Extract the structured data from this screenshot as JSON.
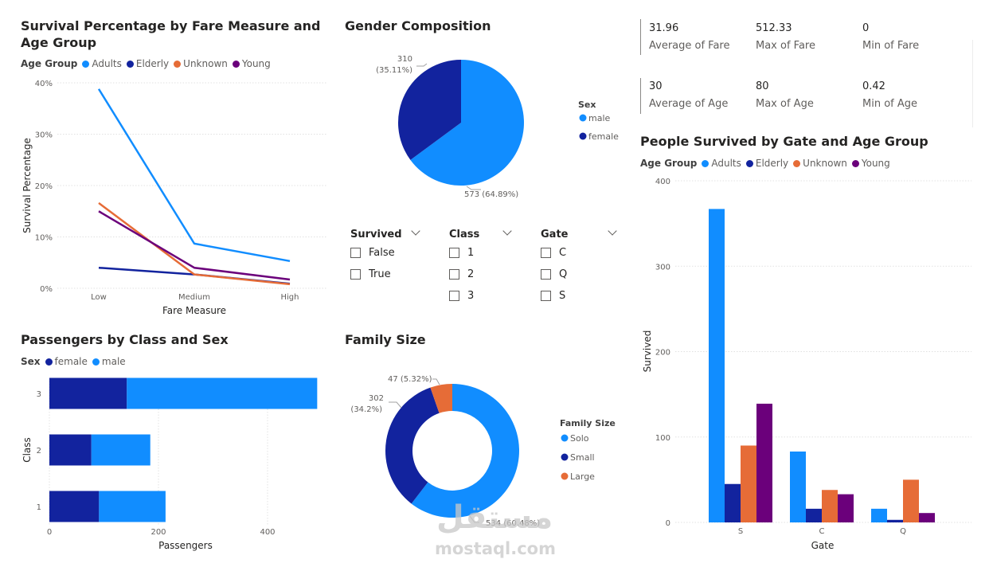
{
  "line_chart": {
    "title": "Survival Percentage by Fare Measure and Age Group",
    "legend_title": "Age Group",
    "xlabel": "Fare Measure",
    "ylabel": "Survival Percentage",
    "yticks": [
      "0%",
      "10%",
      "20%",
      "30%",
      "40%"
    ]
  },
  "pie_chart": {
    "title": "Gender Composition",
    "legend_title": "Sex",
    "label_female_count": "310",
    "label_female_pct": "(35.11%)",
    "label_male": "573 (64.89%)"
  },
  "stacked_bar": {
    "title": "Passengers by Class and Sex",
    "legend_title": "Sex",
    "xlabel": "Passengers",
    "ylabel": "Class",
    "xticks": [
      "0",
      "200",
      "400"
    ]
  },
  "donut_chart": {
    "title": "Family Size",
    "legend_title": "Family Size",
    "label_large": "47 (5.32%)",
    "label_small_count": "302",
    "label_small_pct": "(34.2%)",
    "label_solo": "534 (60.48%)"
  },
  "column_chart": {
    "title": "People Survived by Gate and Age Group",
    "legend_title": "Age Group",
    "xlabel": "Gate",
    "ylabel": "Survived",
    "yticks": [
      "0",
      "100",
      "200",
      "300",
      "400"
    ]
  },
  "slicers": [
    {
      "title": "Survived",
      "options": [
        "False",
        "True"
      ]
    },
    {
      "title": "Class",
      "options": [
        "1",
        "2",
        "3"
      ]
    },
    {
      "title": "Gate",
      "options": [
        "C",
        "Q",
        "S"
      ]
    }
  ],
  "kpis": {
    "fare": [
      {
        "value": "31.96",
        "label": "Average of Fare"
      },
      {
        "value": "512.33",
        "label": "Max of Fare"
      },
      {
        "value": "0",
        "label": "Min of Fare"
      }
    ],
    "age": [
      {
        "value": "30",
        "label": "Average of Age"
      },
      {
        "value": "80",
        "label": "Max of Age"
      },
      {
        "value": "0.42",
        "label": "Min of Age"
      }
    ]
  },
  "watermark": {
    "arabic": "مستقل",
    "latin": "mostaql.com"
  },
  "colors": {
    "adults": "#118dff",
    "elderly": "#12239e",
    "unknown": "#e66c37",
    "young": "#6b007b",
    "male": "#118dff",
    "female": "#12239e",
    "solo": "#118dff",
    "small": "#12239e",
    "large": "#e66c37",
    "grid": "#e1e1e1",
    "axis_text": "#605e5c"
  },
  "chart_data": [
    {
      "type": "line",
      "title": "Survival Percentage by Fare Measure and Age Group",
      "xlabel": "Fare Measure",
      "ylabel": "Survival Percentage",
      "categories": [
        "Low",
        "Medium",
        "High"
      ],
      "ylim": [
        0,
        40
      ],
      "series": [
        {
          "name": "Adults",
          "values": [
            38.8,
            8.7,
            5.3
          ]
        },
        {
          "name": "Elderly",
          "values": [
            4.0,
            2.7,
            0.9
          ]
        },
        {
          "name": "Unknown",
          "values": [
            16.6,
            2.7,
            0.8
          ]
        },
        {
          "name": "Young",
          "values": [
            15.0,
            4.0,
            1.7
          ]
        }
      ]
    },
    {
      "type": "pie",
      "title": "Gender Composition",
      "labels": [
        "male",
        "female"
      ],
      "values": [
        573,
        310
      ],
      "percents": [
        64.89,
        35.11
      ]
    },
    {
      "type": "bar",
      "orientation": "horizontal",
      "stacked": true,
      "title": "Passengers by Class and Sex",
      "xlabel": "Passengers",
      "ylabel": "Class",
      "categories": [
        "3",
        "2",
        "1"
      ],
      "xlim": [
        0,
        500
      ],
      "series": [
        {
          "name": "female",
          "values": [
            142,
            77,
            91
          ]
        },
        {
          "name": "male",
          "values": [
            349,
            108,
            122
          ]
        }
      ]
    },
    {
      "type": "pie",
      "subtype": "donut",
      "title": "Family Size",
      "labels": [
        "Solo",
        "Small",
        "Large"
      ],
      "values": [
        534,
        302,
        47
      ],
      "percents": [
        60.48,
        34.2,
        5.32
      ]
    },
    {
      "type": "bar",
      "title": "People Survived by Gate and Age Group",
      "xlabel": "Gate",
      "ylabel": "Survived",
      "categories": [
        "S",
        "C",
        "Q"
      ],
      "ylim": [
        0,
        400
      ],
      "series": [
        {
          "name": "Adults",
          "values": [
            367,
            83,
            16
          ]
        },
        {
          "name": "Elderly",
          "values": [
            45,
            16,
            3
          ]
        },
        {
          "name": "Unknown",
          "values": [
            90,
            38,
            50
          ]
        },
        {
          "name": "Young",
          "values": [
            139,
            33,
            11
          ]
        }
      ]
    }
  ]
}
